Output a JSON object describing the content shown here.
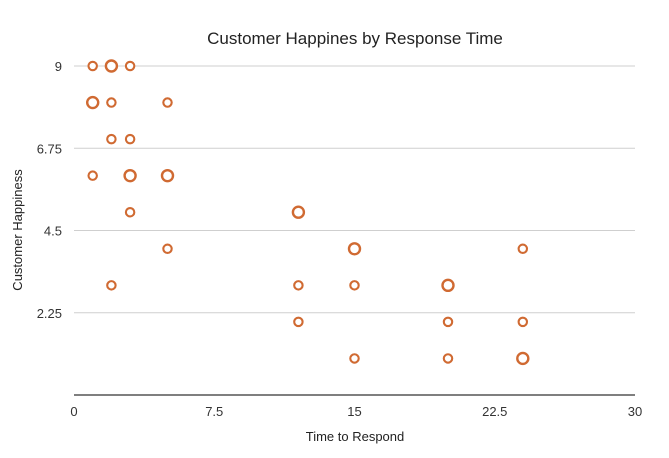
{
  "chart_data": {
    "type": "scatter",
    "title": "Customer Happines by Response Time",
    "xlabel": "Time to Respond",
    "ylabel": "Customer Happiness",
    "xlim": [
      0,
      30
    ],
    "ylim": [
      0,
      9
    ],
    "x_ticks": [
      0,
      7.5,
      15,
      22.5,
      30
    ],
    "x_tick_labels": [
      "0",
      "7.5",
      "15",
      "22.5",
      "30"
    ],
    "y_ticks": [
      2.25,
      4.5,
      6.75,
      9
    ],
    "y_tick_labels": [
      "2.25",
      "4.5",
      "6.75",
      "9"
    ],
    "grid": "horizontal",
    "legend": "none",
    "marker_color": "#d06a32",
    "points": [
      {
        "x": 1,
        "y": 9,
        "size": "small"
      },
      {
        "x": 2,
        "y": 9,
        "size": "large"
      },
      {
        "x": 3,
        "y": 9,
        "size": "small"
      },
      {
        "x": 1,
        "y": 8,
        "size": "large"
      },
      {
        "x": 2,
        "y": 8,
        "size": "small"
      },
      {
        "x": 5,
        "y": 8,
        "size": "small"
      },
      {
        "x": 2,
        "y": 7,
        "size": "small"
      },
      {
        "x": 3,
        "y": 7,
        "size": "small"
      },
      {
        "x": 1,
        "y": 6,
        "size": "small"
      },
      {
        "x": 3,
        "y": 6,
        "size": "large"
      },
      {
        "x": 5,
        "y": 6,
        "size": "large"
      },
      {
        "x": 3,
        "y": 5,
        "size": "small"
      },
      {
        "x": 12,
        "y": 5,
        "size": "large"
      },
      {
        "x": 5,
        "y": 4,
        "size": "small"
      },
      {
        "x": 15,
        "y": 4,
        "size": "large"
      },
      {
        "x": 24,
        "y": 4,
        "size": "small"
      },
      {
        "x": 2,
        "y": 3,
        "size": "small"
      },
      {
        "x": 12,
        "y": 3,
        "size": "small"
      },
      {
        "x": 15,
        "y": 3,
        "size": "small"
      },
      {
        "x": 20,
        "y": 3,
        "size": "large"
      },
      {
        "x": 12,
        "y": 2,
        "size": "small"
      },
      {
        "x": 20,
        "y": 2,
        "size": "small"
      },
      {
        "x": 24,
        "y": 2,
        "size": "small"
      },
      {
        "x": 15,
        "y": 1,
        "size": "small"
      },
      {
        "x": 20,
        "y": 1,
        "size": "small"
      },
      {
        "x": 24,
        "y": 1,
        "size": "large"
      }
    ]
  }
}
